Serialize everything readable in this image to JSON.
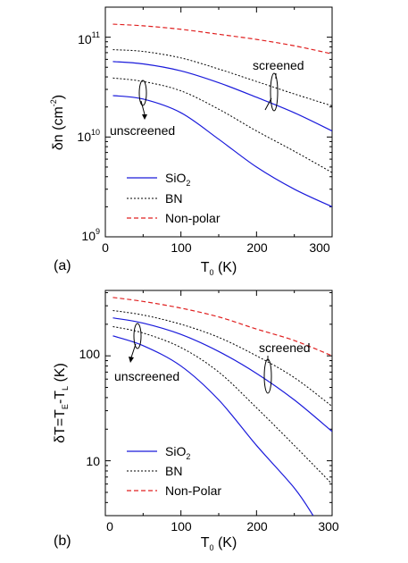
{
  "chart_data": [
    {
      "type": "line",
      "panel_label": "(a)",
      "xlabel": {
        "main": "T",
        "sub": "0",
        "rest": " (K)"
      },
      "ylabel": {
        "main": "δn (cm",
        "sup": "-2",
        "rest": ")"
      },
      "x_ticks": [
        "0",
        "100",
        "200",
        "300"
      ],
      "y_ticks": [
        {
          "value": 1000000000.0,
          "base": "10",
          "exp": "9"
        },
        {
          "value": 10000000000.0,
          "base": "10",
          "exp": "10"
        },
        {
          "value": 100000000000.0,
          "base": "10",
          "exp": "11"
        }
      ],
      "xlim": [
        0,
        300
      ],
      "ylim": [
        1000000000.0,
        200000000000.0
      ],
      "yscale": "log",
      "grid": false,
      "legend_position": "bottom-left",
      "legend": [
        {
          "main": "SiO",
          "sub": "2",
          "color": "#1a1adb",
          "dash": "solid"
        },
        {
          "main": "BN",
          "sub": "",
          "color": "#000000",
          "dash": "dotted"
        },
        {
          "main": "Non-polar",
          "sub": "",
          "color": "#e02020",
          "dash": "dashed"
        }
      ],
      "annotations": [
        "screened",
        "unscreened"
      ],
      "series": [
        {
          "style": 2,
          "x": [
            10,
            50,
            100,
            150,
            200,
            250,
            300
          ],
          "y": [
            135000000000.0,
            130000000000.0,
            120000000000.0,
            107000000000.0,
            95000000000.0,
            82000000000.0,
            68000000000.0
          ]
        },
        {
          "style": 1,
          "x": [
            10,
            50,
            100,
            150,
            200,
            250,
            300
          ],
          "y": [
            75000000000.0,
            72000000000.0,
            62000000000.0,
            48000000000.0,
            36000000000.0,
            27000000000.0,
            20500000000.0
          ]
        },
        {
          "style": 0,
          "x": [
            10,
            50,
            100,
            150,
            200,
            250,
            300
          ],
          "y": [
            57000000000.0,
            54000000000.0,
            46000000000.0,
            35000000000.0,
            25000000000.0,
            17500000000.0,
            11500000000.0
          ]
        },
        {
          "style": 1,
          "x": [
            10,
            50,
            100,
            150,
            200,
            250,
            300
          ],
          "y": [
            39000000000.0,
            36000000000.0,
            29000000000.0,
            19000000000.0,
            11500000000.0,
            7200000000.0,
            4400000000.0
          ]
        },
        {
          "style": 0,
          "x": [
            10,
            50,
            100,
            150,
            200,
            250,
            300
          ],
          "y": [
            26000000000.0,
            24000000000.0,
            17500000000.0,
            9500000000.0,
            5000000000.0,
            3000000000.0,
            2000000000.0
          ]
        }
      ]
    },
    {
      "type": "line",
      "panel_label": "(b)",
      "xlabel": {
        "main": "T",
        "sub": "0",
        "rest": " (K)"
      },
      "ylabel": {
        "text": "δT=T",
        "sub1": "E",
        "mid": "-T",
        "sub2": "L",
        "rest": " (K)"
      },
      "x_ticks": [
        "0",
        "100",
        "200",
        "300"
      ],
      "y_ticks": [
        {
          "value": 10,
          "label": "10"
        },
        {
          "value": 100,
          "label": "100"
        }
      ],
      "xlim": [
        0,
        300
      ],
      "ylim": [
        3,
        420
      ],
      "yscale": "log",
      "grid": false,
      "legend_position": "bottom-left",
      "legend": [
        {
          "main": "SiO",
          "sub": "2",
          "color": "#1a1adb",
          "dash": "solid"
        },
        {
          "main": "BN",
          "sub": "",
          "color": "#000000",
          "dash": "dotted"
        },
        {
          "main": "Non-Polar",
          "sub": "",
          "color": "#e02020",
          "dash": "dashed"
        }
      ],
      "annotations": [
        "screened",
        "unscreened"
      ],
      "series": [
        {
          "style": 2,
          "x": [
            10,
            50,
            100,
            150,
            200,
            250,
            300
          ],
          "y": [
            360,
            330,
            285,
            235,
            180,
            140,
            100
          ]
        },
        {
          "style": 1,
          "x": [
            10,
            50,
            100,
            150,
            200,
            250,
            300
          ],
          "y": [
            270,
            245,
            200,
            150,
            100,
            62,
            33
          ]
        },
        {
          "style": 0,
          "x": [
            10,
            50,
            100,
            150,
            200,
            250,
            300
          ],
          "y": [
            230,
            205,
            160,
            110,
            68,
            38,
            19
          ]
        },
        {
          "style": 1,
          "x": [
            10,
            50,
            100,
            150,
            200,
            250,
            300
          ],
          "y": [
            190,
            165,
            120,
            70,
            32,
            14,
            6
          ]
        },
        {
          "style": 0,
          "x": [
            10,
            50,
            100,
            150,
            200,
            250,
            275
          ],
          "y": [
            155,
            125,
            80,
            38,
            14,
            5.5,
            3
          ]
        }
      ]
    }
  ]
}
